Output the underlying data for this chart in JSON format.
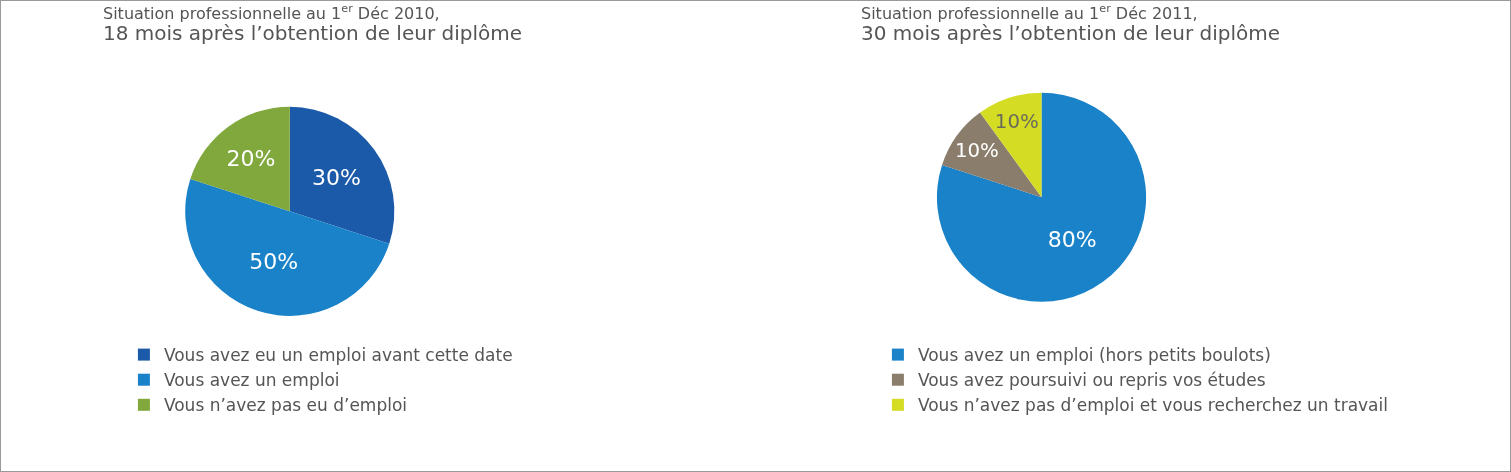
{
  "chart_data": [
    {
      "type": "pie",
      "title": "Situation professionnelle au 1$^{er}$ Déc 2010,",
      "subtitle": "18 mois après l’obtention de leur diplôme",
      "categories": [
        "Vous avez eu un emploi avant cette date",
        "Vous avez un emploi",
        "Vous n’avez pas eu d’emploi"
      ],
      "values": [
        30,
        50,
        20
      ],
      "colors": [
        "#1a5aa8",
        "#1a82c8",
        "#80a83c"
      ],
      "value_labels": [
        "30%",
        "50%",
        "20%"
      ],
      "legend": "bottom"
    },
    {
      "type": "pie",
      "title": "Situation professionnelle au 1$^{er}$ Déc 2011,",
      "subtitle": "30 mois après l’obtention de leur diplôme",
      "categories": [
        "Vous avez un emploi (hors petits boulots)",
        "Vous avez poursuivi ou repris vos études",
        "Vous n’avez pas d’emploi et vous recherchez un travail"
      ],
      "values": [
        80,
        10,
        10
      ],
      "colors": [
        "#1a82c8",
        "#8b7d6b",
        "#d4dc24"
      ],
      "value_labels": [
        "80%",
        "10%",
        "10%"
      ],
      "legend": "bottom"
    }
  ]
}
